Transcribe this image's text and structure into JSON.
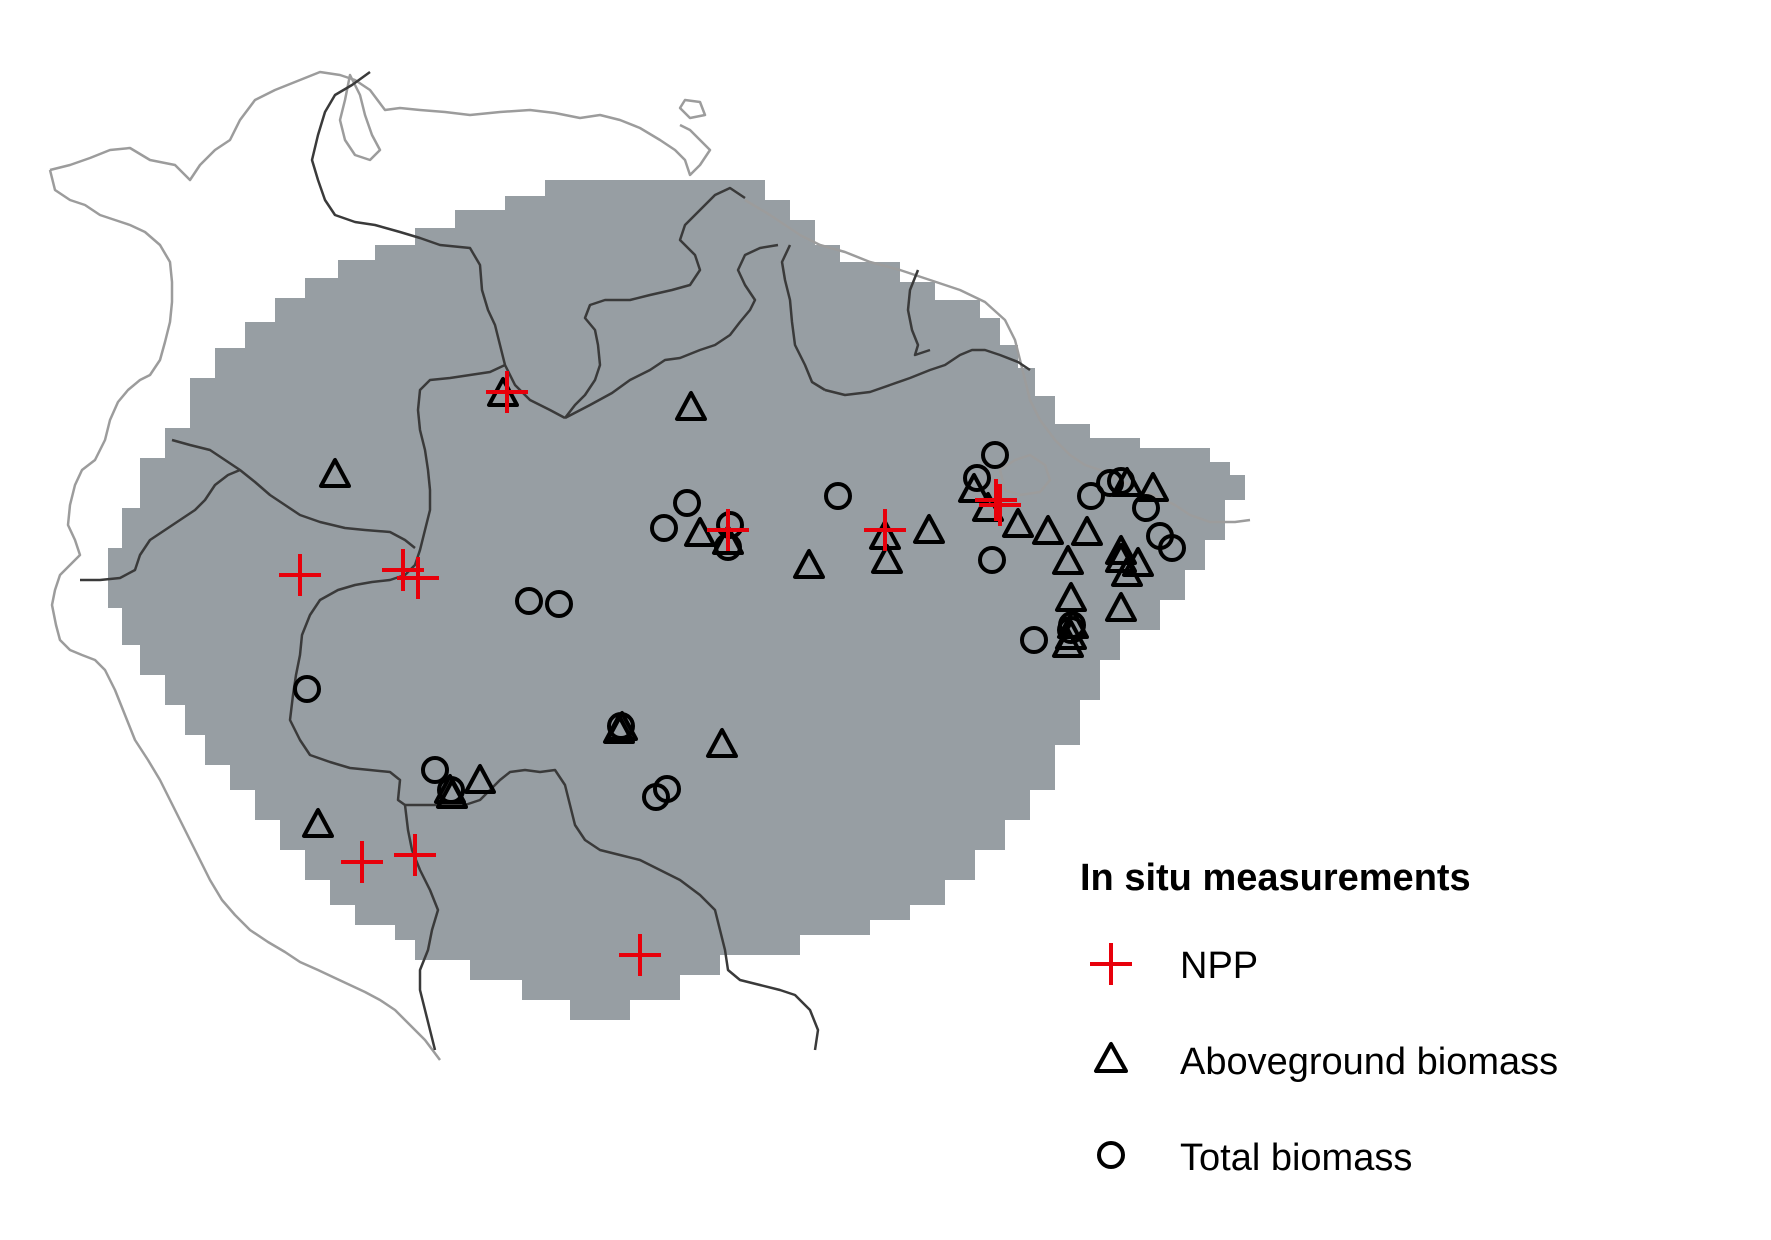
{
  "legend": {
    "title": "In situ measurements",
    "items": [
      {
        "label": "NPP",
        "symbol": "plus",
        "color": "#e8000b"
      },
      {
        "label": "Aboveground biomass",
        "symbol": "triangle",
        "color": "#000000"
      },
      {
        "label": "Total biomass",
        "symbol": "circle",
        "color": "#000000"
      }
    ]
  },
  "colors": {
    "region_fill": "#979ea3",
    "coast": "#9c9c9c",
    "border": "#3a3a3a",
    "npp": "#e8000b",
    "marker": "#000000"
  }
}
